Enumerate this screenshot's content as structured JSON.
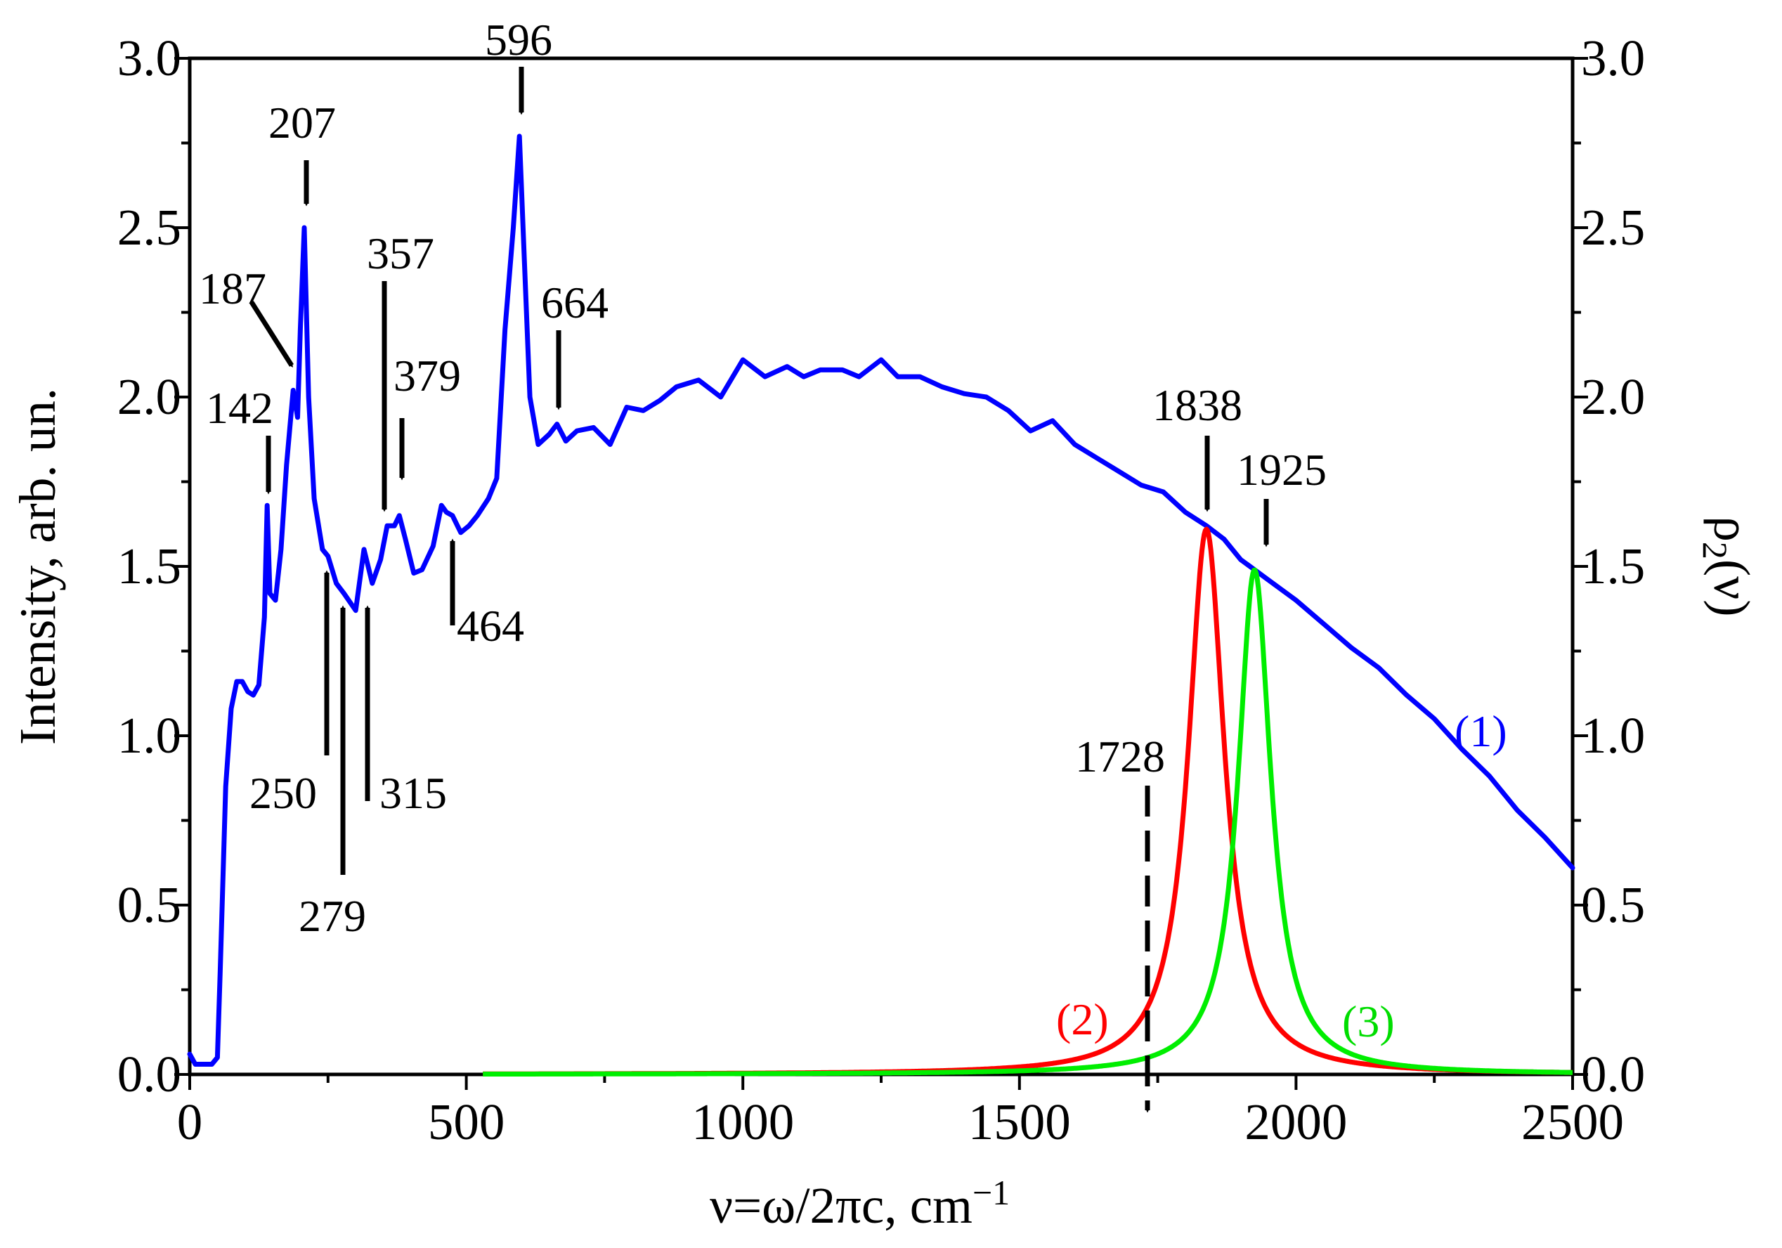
{
  "chart_data": {
    "type": "line",
    "xlabel": "ν=ω/2πc, cm",
    "xlabel_superscript": "−1",
    "ylabel_left": "Intensity, arb. un.",
    "ylabel_right_base": "ρ",
    "ylabel_right_sub": "2",
    "ylabel_right_tail": "(ν)",
    "xlim": [
      0,
      2500
    ],
    "ylim": [
      0,
      3.0
    ],
    "ylim_right": [
      0,
      3.0
    ],
    "xticks": [
      0,
      500,
      1000,
      1500,
      2000,
      2500
    ],
    "xtick_labels": [
      "0",
      "500",
      "1000",
      "1500",
      "2000",
      "2500"
    ],
    "yticks": [
      0,
      0.5,
      1.0,
      1.5,
      2.0,
      2.5,
      3.0
    ],
    "ytick_labels": [
      "0.0",
      "0.5",
      "1.0",
      "1.5",
      "2.0",
      "2.5",
      "3.0"
    ],
    "grid": false,
    "series": [
      {
        "name": "(1)",
        "color": "#0000ff",
        "x": [
          0,
          10,
          40,
          50,
          55,
          65,
          75,
          85,
          95,
          105,
          115,
          125,
          135,
          140,
          145,
          155,
          165,
          175,
          187,
          195,
          200,
          207,
          215,
          225,
          240,
          250,
          265,
          279,
          300,
          315,
          330,
          345,
          357,
          370,
          379,
          390,
          405,
          420,
          440,
          455,
          464,
          475,
          490,
          505,
          520,
          540,
          555,
          570,
          585,
          596,
          605,
          615,
          630,
          650,
          664,
          680,
          700,
          730,
          760,
          790,
          820,
          850,
          880,
          920,
          960,
          1000,
          1040,
          1080,
          1110,
          1140,
          1180,
          1210,
          1250,
          1280,
          1320,
          1360,
          1400,
          1440,
          1480,
          1520,
          1560,
          1600,
          1640,
          1680,
          1720,
          1760,
          1800,
          1838,
          1870,
          1900,
          1925,
          1950,
          2000,
          2050,
          2100,
          2150,
          2200,
          2250,
          2300,
          2350,
          2400,
          2450,
          2500
        ],
        "values": [
          0.06,
          0.03,
          0.03,
          0.05,
          0.3,
          0.85,
          1.08,
          1.16,
          1.16,
          1.13,
          1.12,
          1.15,
          1.35,
          1.68,
          1.42,
          1.4,
          1.55,
          1.8,
          2.02,
          1.94,
          2.2,
          2.5,
          2.0,
          1.7,
          1.55,
          1.53,
          1.45,
          1.42,
          1.37,
          1.55,
          1.45,
          1.52,
          1.62,
          1.62,
          1.65,
          1.58,
          1.48,
          1.49,
          1.56,
          1.68,
          1.66,
          1.65,
          1.6,
          1.62,
          1.65,
          1.7,
          1.76,
          2.2,
          2.5,
          2.77,
          2.4,
          2.0,
          1.86,
          1.89,
          1.92,
          1.87,
          1.9,
          1.91,
          1.86,
          1.97,
          1.96,
          1.99,
          2.03,
          2.05,
          2.0,
          2.11,
          2.06,
          2.09,
          2.06,
          2.08,
          2.08,
          2.06,
          2.11,
          2.06,
          2.06,
          2.03,
          2.01,
          2.0,
          1.96,
          1.9,
          1.93,
          1.86,
          1.82,
          1.78,
          1.74,
          1.72,
          1.66,
          1.62,
          1.58,
          1.52,
          1.49,
          1.46,
          1.4,
          1.33,
          1.26,
          1.2,
          1.12,
          1.05,
          0.96,
          0.88,
          0.78,
          0.7,
          0.61
        ]
      },
      {
        "name": "(2)",
        "color": "#ff0000",
        "model": "lorentzian",
        "center": 1838,
        "peak": 1.61,
        "hwhm": 40
      },
      {
        "name": "(3)",
        "color": "#00ee00",
        "model": "lorentzian",
        "center": 1925,
        "peak": 1.49,
        "hwhm": 36
      }
    ],
    "annotations": [
      {
        "label": "142",
        "x": 142,
        "direction": "down"
      },
      {
        "label": "187",
        "x": 187,
        "direction": "diagonal-down"
      },
      {
        "label": "207",
        "x": 207,
        "direction": "down"
      },
      {
        "label": "250",
        "x": 250,
        "direction": "up"
      },
      {
        "label": "279",
        "x": 279,
        "direction": "up"
      },
      {
        "label": "315",
        "x": 315,
        "direction": "up"
      },
      {
        "label": "357",
        "x": 357,
        "direction": "down"
      },
      {
        "label": "379",
        "x": 379,
        "direction": "down"
      },
      {
        "label": "464",
        "x": 464,
        "direction": "up"
      },
      {
        "label": "596",
        "x": 596,
        "direction": "down"
      },
      {
        "label": "664",
        "x": 664,
        "direction": "down"
      },
      {
        "label": "1728",
        "x": 1728,
        "direction": "down-dashed"
      },
      {
        "label": "1838",
        "x": 1838,
        "direction": "down"
      },
      {
        "label": "1925",
        "x": 1925,
        "direction": "down"
      }
    ]
  }
}
